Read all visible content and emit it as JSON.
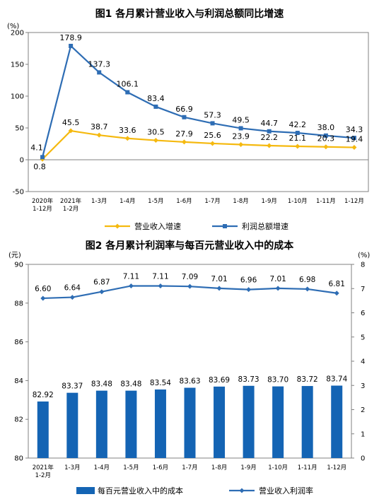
{
  "colors": {
    "profit_line": "#2E6DB4",
    "revenue_line": "#F5B90F",
    "bar": "#1464B4",
    "rate_line": "#2E6DB4",
    "axis": "#808080"
  },
  "chart_data": [
    {
      "type": "line",
      "title": "图1  各月累计营业收入与利润总额同比增速",
      "unit": "(%)",
      "categories": [
        [
          "2020年",
          "1-12月"
        ],
        [
          "2021年",
          "1-2月"
        ],
        [
          "1-3月"
        ],
        [
          "1-4月"
        ],
        [
          "1-5月"
        ],
        [
          "1-6月"
        ],
        [
          "1-7月"
        ],
        [
          "1-8月"
        ],
        [
          "1-9月"
        ],
        [
          "1-10月"
        ],
        [
          "1-11月"
        ],
        [
          "1-12月"
        ]
      ],
      "ylim": [
        -50,
        200
      ],
      "yticks": [
        "-50",
        "0",
        "50",
        "100",
        "150",
        "200"
      ],
      "series": [
        {
          "name": "营业收入增速",
          "values": [
            0.8,
            45.5,
            38.7,
            33.6,
            30.5,
            27.9,
            25.6,
            23.9,
            22.2,
            21.1,
            20.3,
            19.4
          ],
          "labels": [
            "0.8",
            "45.5",
            "38.7",
            "33.6",
            "30.5",
            "27.9",
            "25.6",
            "23.9",
            "22.2",
            "21.1",
            "20.3",
            "19.4"
          ]
        },
        {
          "name": "利润总额增速",
          "values": [
            4.1,
            178.9,
            137.3,
            106.1,
            83.4,
            66.9,
            57.3,
            49.5,
            44.7,
            42.2,
            38.0,
            34.3
          ],
          "labels": [
            "4.1",
            "178.9",
            "137.3",
            "106.1",
            "83.4",
            "66.9",
            "57.3",
            "49.5",
            "44.7",
            "42.2",
            "38.0",
            "34.3"
          ]
        }
      ],
      "legend": "bottom"
    },
    {
      "type": "bar",
      "title": "图2  各月累计利润率与每百元营业收入中的成本",
      "left_unit": "(元)",
      "right_unit": "(%)",
      "categories": [
        [
          "2021年",
          "1-2月"
        ],
        [
          "1-3月"
        ],
        [
          "1-4月"
        ],
        [
          "1-5月"
        ],
        [
          "1-6月"
        ],
        [
          "1-7月"
        ],
        [
          "1-8月"
        ],
        [
          "1-9月"
        ],
        [
          "1-10月"
        ],
        [
          "1-11月"
        ],
        [
          "1-12月"
        ]
      ],
      "ylim_left": [
        80,
        90
      ],
      "yticks_left": [
        "80",
        "82",
        "84",
        "86",
        "88",
        "90"
      ],
      "ylim_right": [
        0,
        8
      ],
      "yticks_right": [
        "0",
        "1",
        "2",
        "3",
        "4",
        "5",
        "6",
        "7",
        "8"
      ],
      "series": [
        {
          "name": "每百元营业收入中的成本",
          "type": "bar",
          "axis": "left",
          "values": [
            82.92,
            83.37,
            83.48,
            83.48,
            83.54,
            83.63,
            83.69,
            83.73,
            83.7,
            83.72,
            83.74
          ],
          "labels": [
            "82.92",
            "83.37",
            "83.48",
            "83.48",
            "83.54",
            "83.63",
            "83.69",
            "83.73",
            "83.70",
            "83.72",
            "83.74"
          ]
        },
        {
          "name": "营业收入利润率",
          "type": "line",
          "axis": "right",
          "values": [
            6.6,
            6.64,
            6.87,
            7.11,
            7.11,
            7.09,
            7.01,
            6.96,
            7.01,
            6.98,
            6.81
          ],
          "labels": [
            "6.60",
            "6.64",
            "6.87",
            "7.11",
            "7.11",
            "7.09",
            "7.01",
            "6.96",
            "7.01",
            "6.98",
            "6.81"
          ]
        }
      ],
      "legend": "bottom"
    }
  ]
}
